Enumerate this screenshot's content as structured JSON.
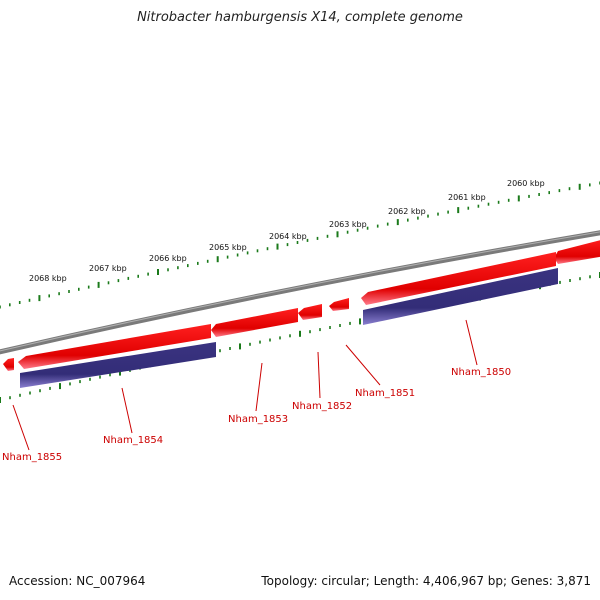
{
  "title": "Nitrobacter hamburgensis X14, complete genome",
  "footer": {
    "accession": "Accession: NC_007964",
    "summary": "Topology: circular; Length: 4,406,967 bp; Genes: 3,871"
  },
  "colors": {
    "forward_gene": "#ee0000",
    "reverse_gene": "#3a3380",
    "backbone": "#7a7a7a",
    "ticks": "#1a7a1a",
    "gene_label": "#cc0000"
  },
  "kbp_labels": [
    "2060 kbp",
    "2061 kbp",
    "2062 kbp",
    "2063 kbp",
    "2064 kbp",
    "2065 kbp",
    "2066 kbp",
    "2067 kbp",
    "2068 kbp"
  ],
  "genes": [
    {
      "name": "Nham_1850",
      "strand": "reverse"
    },
    {
      "name": "Nham_1851",
      "strand": "forward"
    },
    {
      "name": "Nham_1852",
      "strand": "forward"
    },
    {
      "name": "Nham_1853",
      "strand": "forward"
    },
    {
      "name": "Nham_1854",
      "strand": "reverse"
    },
    {
      "name": "Nham_1855",
      "strand": "forward"
    }
  ]
}
